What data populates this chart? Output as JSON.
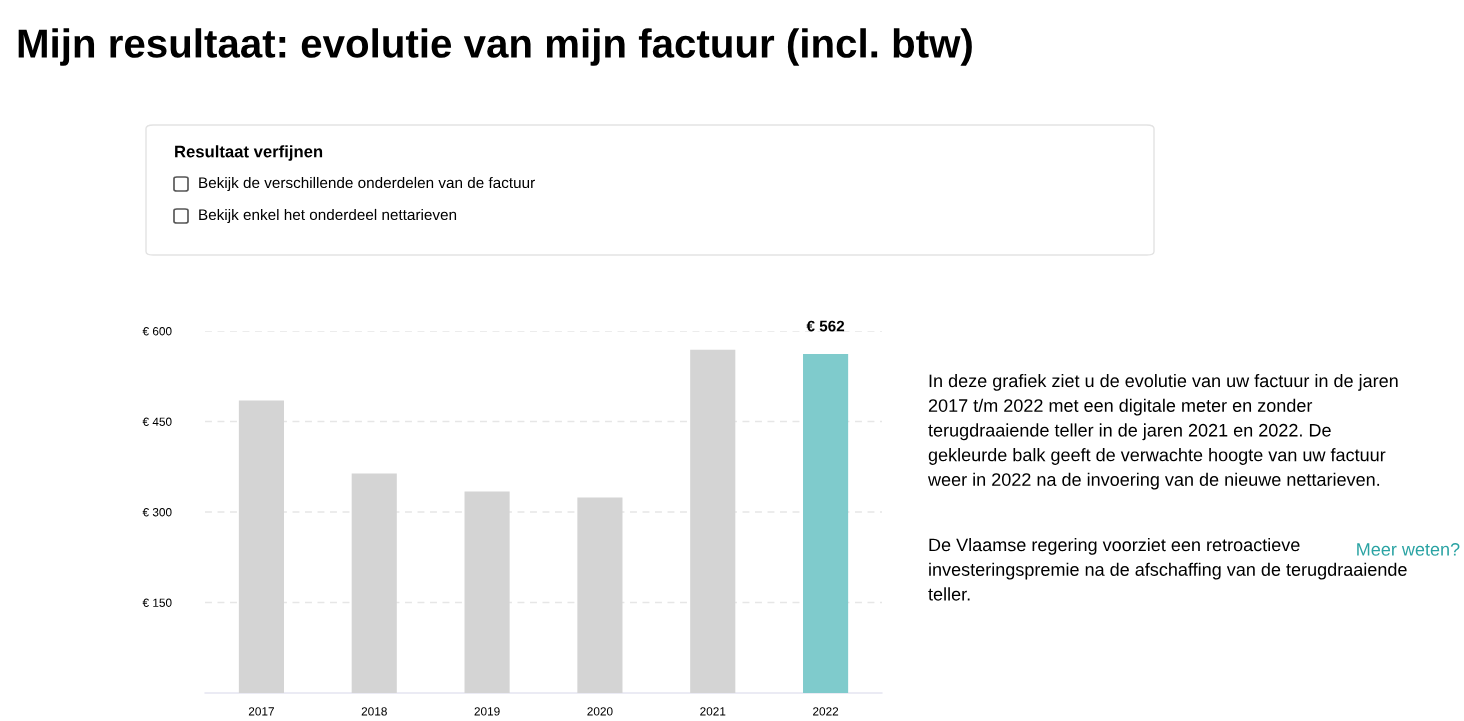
{
  "chart_data": {
    "type": "bar",
    "title": "Mijn resultaat: evolutie van mijn factuur (incl. btw)",
    "categories": [
      "2017",
      "2018",
      "2019",
      "2020",
      "2021",
      "2022"
    ],
    "values": [
      485,
      364,
      334,
      324,
      569,
      562
    ],
    "colors": [
      "#d4d4d4",
      "#d4d4d4",
      "#d4d4d4",
      "#d4d4d4",
      "#d4d4d4",
      "#7fcbcc"
    ],
    "value_labels": [
      null,
      null,
      null,
      null,
      null,
      "€ 562"
    ],
    "ylim": [
      0,
      600
    ],
    "yticks": [
      {
        "value": 150,
        "label": "€ 150"
      },
      {
        "value": 300,
        "label": "€ 300"
      },
      {
        "value": 450,
        "label": "€ 450"
      },
      {
        "value": 600,
        "label": "€ 600"
      }
    ],
    "grid": "y",
    "annotations": [
      "Resultaat verfijnen",
      "Bekijk de verschillende onderdelen van de factuur",
      "Bekijk enkel het onderdeel nettarieven",
      "In deze grafiek ziet u de evolutie van uw factuur in de jaren\n2017 t/m 2022 met een digitale meter en zonder\nterugdraaiende teller in de jaren 2021 en 2022. De\ngekleurde balk geeft de verwachte hoogte van uw factuur\nweer in 2022 na de invoering van de nieuwe nettarieven.",
      "De Vlaamse regering voorziet een retroactieve\ninvesteringspremie na de afschaffing van de terugdraaiende\nteller.",
      "Meer weten?"
    ]
  }
}
